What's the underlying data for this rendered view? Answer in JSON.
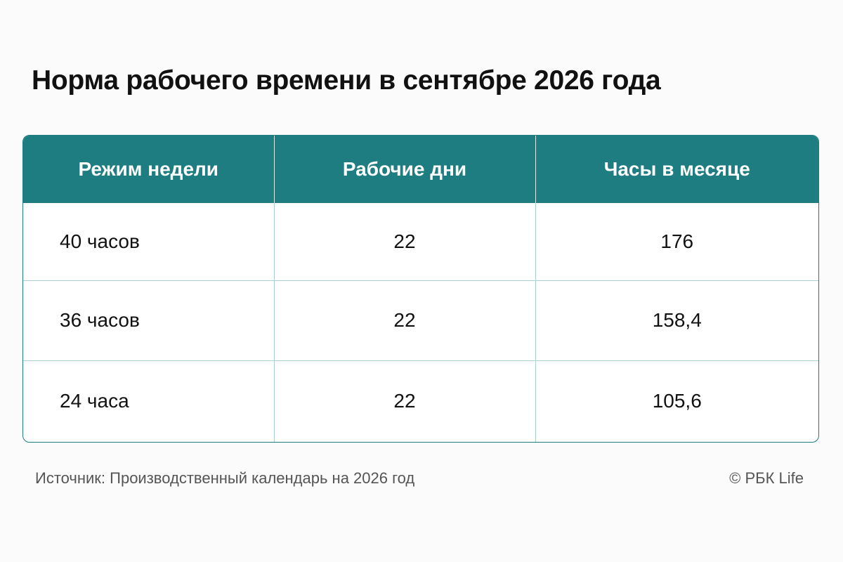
{
  "title": "Норма рабочего времени в сентябре 2026 года",
  "table": {
    "headers": [
      "Режим недели",
      "Рабочие дни",
      "Часы в месяце"
    ],
    "rows": [
      [
        "40 часов",
        "22",
        "176"
      ],
      [
        "36 часов",
        "22",
        "158,4"
      ],
      [
        "24 часа",
        "22",
        "105,6"
      ]
    ]
  },
  "footer": {
    "source": "Источник: Производственный календарь на 2026 год",
    "copyright": "© РБК Life"
  },
  "colors": {
    "header_bg": "#1e7d80",
    "header_text": "#ffffff",
    "grid_line": "#a9cfd0"
  }
}
